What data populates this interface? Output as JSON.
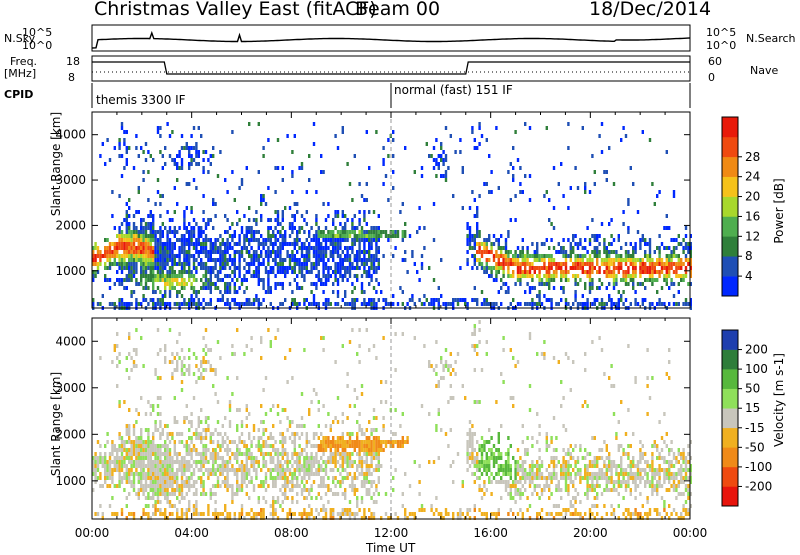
{
  "header": {
    "station": "Christmas Valley East (fitACF)",
    "beam": "Beam 00",
    "date": "18/Dec/2014"
  },
  "status_panels": {
    "noise": {
      "left_label": "N.Sky",
      "left_ticks": [
        "10^5",
        "10^0"
      ],
      "right_label": "N.Search",
      "right_ticks": [
        "10^5",
        "10^0"
      ]
    },
    "freq": {
      "left_label_line1": "Freq.",
      "left_label_line2": "[MHz]",
      "left_ticks": [
        "18",
        "8"
      ],
      "right_label": "Nave",
      "right_ticks": [
        "60",
        "0"
      ]
    },
    "cpid": {
      "label": "CPID",
      "modes": [
        "themis 3300 IF",
        "normal (fast) 151 IF"
      ]
    }
  },
  "chart_data": [
    {
      "type": "heatmap",
      "parameter": "power",
      "ylabel": "Slant Range [km]",
      "y_ticks": [
        "1000",
        "2000",
        "3000",
        "4000"
      ],
      "ylim": [
        180,
        4500
      ],
      "xlim": [
        0,
        24
      ],
      "colorbar": {
        "label": "Power [dB]",
        "ticks": [
          "4",
          "8",
          "12",
          "16",
          "20",
          "24",
          "28"
        ],
        "colors": [
          "#0028ff",
          "#1f4fb5",
          "#2f7f3a",
          "#4fae4f",
          "#a8d82c",
          "#f5c21a",
          "#f08a14",
          "#ef4a10",
          "#e81a0a"
        ]
      }
    },
    {
      "type": "heatmap",
      "parameter": "velocity",
      "ylabel": "Slant Range [km]",
      "y_ticks": [
        "1000",
        "2000",
        "3000",
        "4000"
      ],
      "ylim": [
        180,
        4500
      ],
      "xlim": [
        0,
        24
      ],
      "xlabel": "Time UT",
      "x_ticks": [
        "00:00",
        "04:00",
        "08:00",
        "12:00",
        "16:00",
        "20:00",
        "00:00"
      ],
      "colorbar": {
        "label": "Velocity [m s-1]",
        "ticks": [
          "200",
          "100",
          "50",
          "15",
          "-15",
          "-50",
          "-100",
          "-200"
        ],
        "colors": [
          "#1f3fae",
          "#2e7d3a",
          "#57b83c",
          "#8fe05a",
          "#c8c6bc",
          "#f0b020",
          "#f08a18",
          "#ef4a10",
          "#e8140c"
        ]
      }
    }
  ]
}
